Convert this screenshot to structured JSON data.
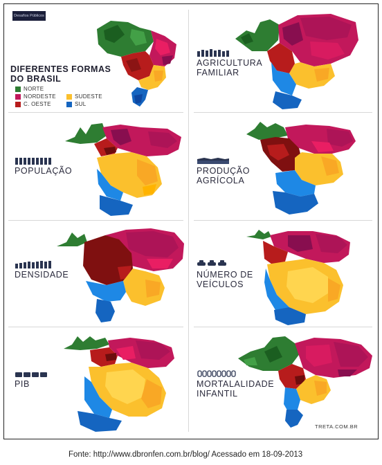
{
  "title_lines": [
    "DIFERENTES FORMAS",
    "DO BRASIL"
  ],
  "logo_text": "Desafios Públicos",
  "legend": [
    {
      "label": "NORTE",
      "color": "#2e7d32"
    },
    {
      "label": "NORDESTE",
      "color": "#c2185b"
    },
    {
      "label": "C. OESTE",
      "color": "#b71c1c"
    },
    {
      "label": "SUDESTE",
      "color": "#fbc02d"
    },
    {
      "label": "SUL",
      "color": "#1565c0"
    }
  ],
  "panels": [
    {
      "id": "base",
      "lines": []
    },
    {
      "id": "agricultura-familiar",
      "lines": [
        "AGRICULTURA",
        "FAMILIAR"
      ],
      "icon": "people-icon"
    },
    {
      "id": "populacao",
      "lines": [
        "POPULAÇÃO"
      ],
      "icon": "people-icon"
    },
    {
      "id": "producao-agricola",
      "lines": [
        "PRODUÇÃO",
        "AGRÍCOLA"
      ],
      "icon": "field-icon"
    },
    {
      "id": "densidade",
      "lines": [
        "DENSIDADE"
      ],
      "icon": "people-icon"
    },
    {
      "id": "numero-de-veiculos",
      "lines": [
        "NÚMERO DE",
        "VEÍCULOS"
      ],
      "icon": "cars-icon"
    },
    {
      "id": "pib",
      "lines": [
        "PIB"
      ],
      "icon": "money-icon"
    },
    {
      "id": "mortalidade-infantil",
      "lines": [
        "MORTALALIDADE",
        "INFANTIL"
      ],
      "icon": "babies-icon"
    }
  ],
  "credit": "TRETA.COM.BR",
  "source": "Fonte: http://www.dbronfen.com.br/blog/ Acessado em 18-09-2013"
}
